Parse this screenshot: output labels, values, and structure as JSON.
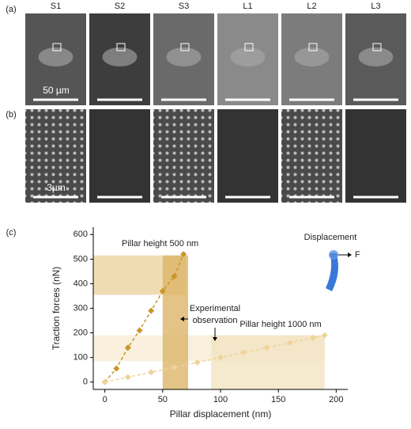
{
  "figure": {
    "panel_labels": [
      "(a)",
      "(b)",
      "(c)"
    ],
    "columns": [
      "S1",
      "S2",
      "S3",
      "L1",
      "L2",
      "L3"
    ],
    "scale_bars": [
      "50 µm",
      "3µm"
    ]
  },
  "chart_data": {
    "type": "scatter",
    "x_label": "Pillar displacement (nm)",
    "y_label": "Traction forces (nN)",
    "xlim": [
      -10,
      210
    ],
    "ylim": [
      -30,
      630
    ],
    "xticks": [
      0,
      50,
      100,
      150,
      200
    ],
    "yticks": [
      0,
      100,
      200,
      300,
      400,
      500,
      600
    ],
    "series": [
      {
        "name": "Pillar height 500 nm",
        "color": "#c8962a",
        "x": [
          0,
          10,
          20,
          30,
          40,
          50,
          60,
          68
        ],
        "values": [
          0,
          55,
          140,
          210,
          290,
          370,
          430,
          520
        ]
      },
      {
        "name": "Pillar height 1000 nm",
        "color": "#f0d39a",
        "x": [
          0,
          20,
          40,
          60,
          80,
          100,
          120,
          140,
          160,
          180,
          190
        ],
        "values": [
          0,
          20,
          40,
          60,
          80,
          100,
          120,
          140,
          160,
          180,
          190
        ]
      }
    ],
    "regions": [
      {
        "x": [
          -10,
          70
        ],
        "y": [
          355,
          515
        ],
        "color": "#ecd3a0"
      },
      {
        "x": [
          -10,
          190
        ],
        "y": [
          85,
          190
        ],
        "color": "#f7ecd6"
      },
      {
        "x": [
          50,
          72
        ],
        "y": [
          -30,
          515
        ],
        "color": "#dcb468"
      },
      {
        "x": [
          92,
          190
        ],
        "y": [
          -30,
          190
        ],
        "color": "#f3e3c2"
      }
    ],
    "annotations": [
      "Experimental",
      "observation",
      "Displacement",
      "F"
    ]
  }
}
